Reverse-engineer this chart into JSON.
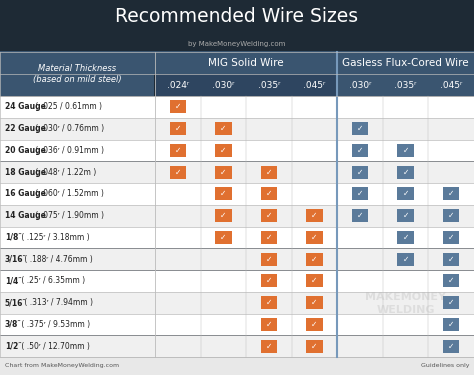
{
  "title": "Recommended Wire Sizes",
  "subtitle": "by MakeMoneyWelding.com",
  "footer_left": "Chart from MakeMoneyWelding.com",
  "footer_right": "Guidelines only",
  "watermark_line1": "MAKEMONEY",
  "watermark_line2": "WELDING",
  "col_group1": "MIG Solid Wire",
  "col_group2": "Gasless Flux-Cored Wire",
  "col_headers": [
    ".024ʳ",
    ".030ʳ",
    ".035ʳ",
    ".045ʳ",
    ".030ʳ",
    ".035ʳ",
    ".045ʳ"
  ],
  "row_labels_bold": [
    "24 Gauge",
    "22 Gauge",
    "20 Gauge",
    "18 Gauge",
    "16 Gauge",
    "14 Gauge",
    "1/8″",
    "3/16″",
    "1/4″",
    "5/16″",
    "3/8″",
    "1/2″"
  ],
  "row_labels_normal": [
    " ( .025 / 0.61mm )",
    " ( .030ʳ / 0.76mm )",
    " ( .036ʳ / 0.91mm )",
    " ( .048ʳ / 1.22m )",
    " ( .060ʳ / 1.52mm )",
    " ( .075ʳ / 1.90mm )",
    " ( .125ʳ / 3.18mm )",
    " ( .188ʳ / 4.76mm )",
    " ( .25ʳ / 6.35mm )",
    " ( .313ʳ / 7.94mm )",
    " ( .375ʳ / 9.53mm )",
    " ( .50ʳ / 12.70mm )"
  ],
  "checks": [
    [
      1,
      0,
      0,
      0,
      0,
      0,
      0
    ],
    [
      1,
      1,
      0,
      0,
      1,
      0,
      0
    ],
    [
      1,
      1,
      0,
      0,
      1,
      1,
      0
    ],
    [
      1,
      1,
      1,
      0,
      1,
      1,
      0
    ],
    [
      0,
      1,
      1,
      0,
      1,
      1,
      1
    ],
    [
      0,
      1,
      1,
      1,
      1,
      1,
      1
    ],
    [
      0,
      1,
      1,
      1,
      0,
      1,
      1
    ],
    [
      0,
      0,
      1,
      1,
      0,
      1,
      1
    ],
    [
      0,
      0,
      1,
      1,
      0,
      0,
      1
    ],
    [
      0,
      0,
      1,
      1,
      0,
      0,
      1
    ],
    [
      0,
      0,
      1,
      1,
      0,
      0,
      1
    ],
    [
      0,
      0,
      1,
      1,
      0,
      0,
      1
    ]
  ],
  "check_color_mig": "#E07030",
  "check_color_flux": "#5A7A9A",
  "bg_title": "#1E2A35",
  "bg_header": "#3A5570",
  "bg_subheader": "#2E4560",
  "bg_row_even": "#FFFFFF",
  "bg_row_odd": "#F0F0F0",
  "text_white": "#FFFFFF",
  "text_dark": "#222222",
  "text_subtitle": "#AAAAAA",
  "text_footer": "#555555",
  "watermark_color": "#CCCCCC",
  "border_color": "#BBBBBB",
  "divider_color": "#7799BB"
}
